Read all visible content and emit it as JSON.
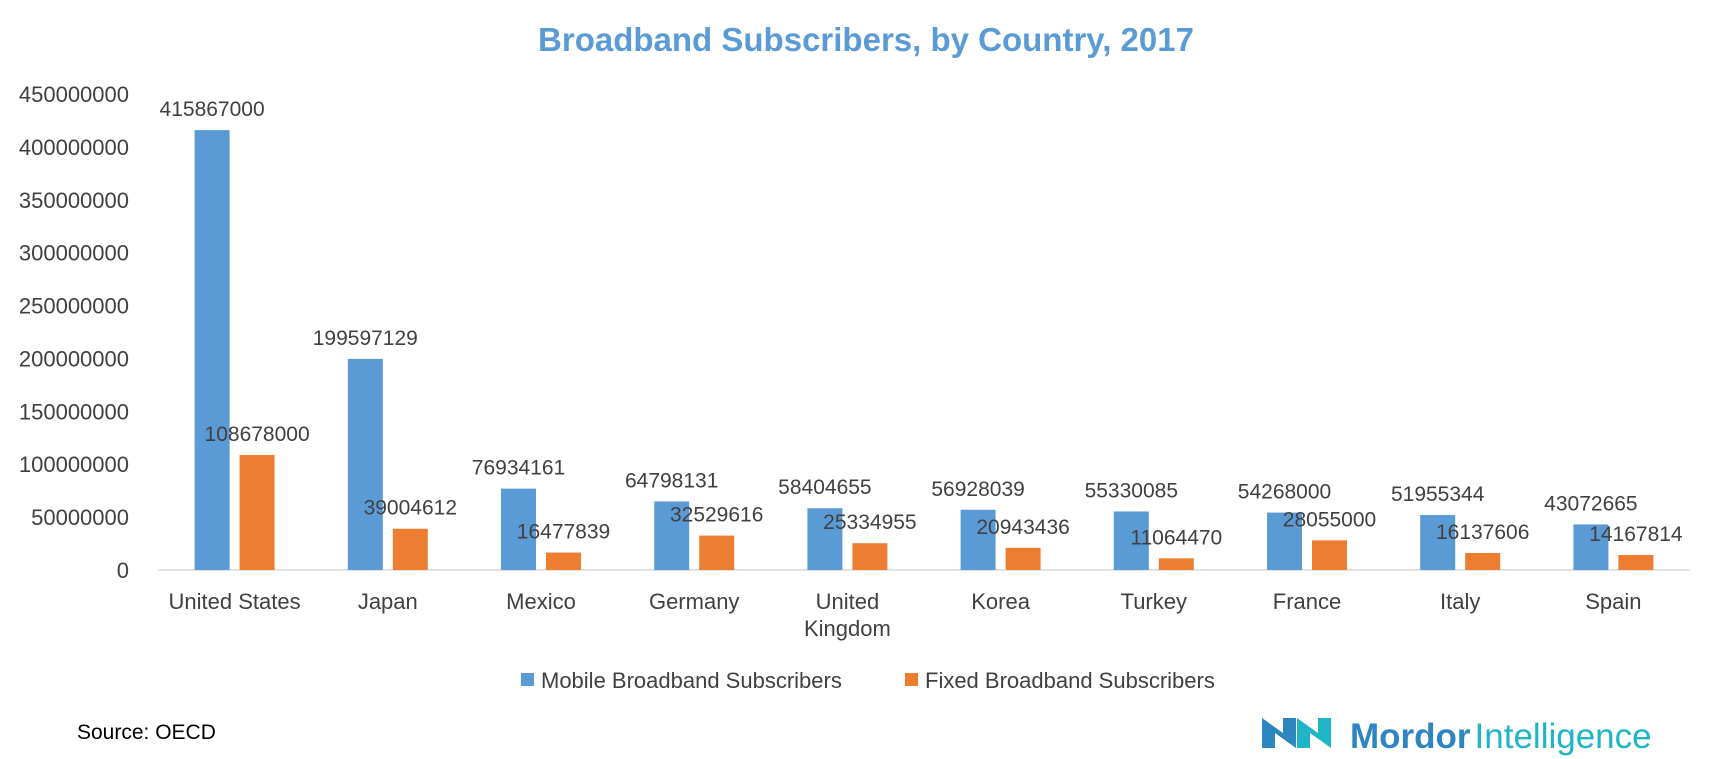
{
  "colors": {
    "mobile": "#5B9BD5",
    "fixed": "#ED7D31",
    "title": "#5B9BD5",
    "text": "#404040",
    "axis": "#D9D9D9",
    "logo": "#2E86C1",
    "logo_accent": "#1FB5C7"
  },
  "chart_data": {
    "type": "bar",
    "title": "Broadband Subscribers, by Country, 2017",
    "xlabel": "",
    "ylabel": "",
    "ylim": [
      0,
      450000000
    ],
    "yticks": [
      "0",
      "50000000",
      "100000000",
      "150000000",
      "200000000",
      "250000000",
      "300000000",
      "350000000",
      "400000000",
      "450000000"
    ],
    "grid": false,
    "legend_position": "bottom",
    "categories": [
      [
        "United States"
      ],
      [
        "Japan"
      ],
      [
        "Mexico"
      ],
      [
        "Germany"
      ],
      [
        "United",
        "Kingdom"
      ],
      [
        "Korea"
      ],
      [
        "Turkey"
      ],
      [
        "France"
      ],
      [
        "Italy"
      ],
      [
        "Spain"
      ]
    ],
    "series": [
      {
        "name": "Mobile Broadband Subscribers",
        "color": "#5B9BD5",
        "values": [
          415867000,
          199597129,
          76934161,
          64798131,
          58404655,
          56928039,
          55330085,
          54268000,
          51955344,
          43072665
        ]
      },
      {
        "name": "Fixed Broadband Subscribers",
        "color": "#ED7D31",
        "values": [
          108678000,
          39004612,
          16477839,
          32529616,
          25334955,
          20943436,
          11064470,
          28055000,
          16137606,
          14167814
        ]
      }
    ]
  },
  "footer": {
    "source": "Source: OECD"
  },
  "logo": {
    "word1": "Mordor",
    "word2": "Intelligence"
  }
}
